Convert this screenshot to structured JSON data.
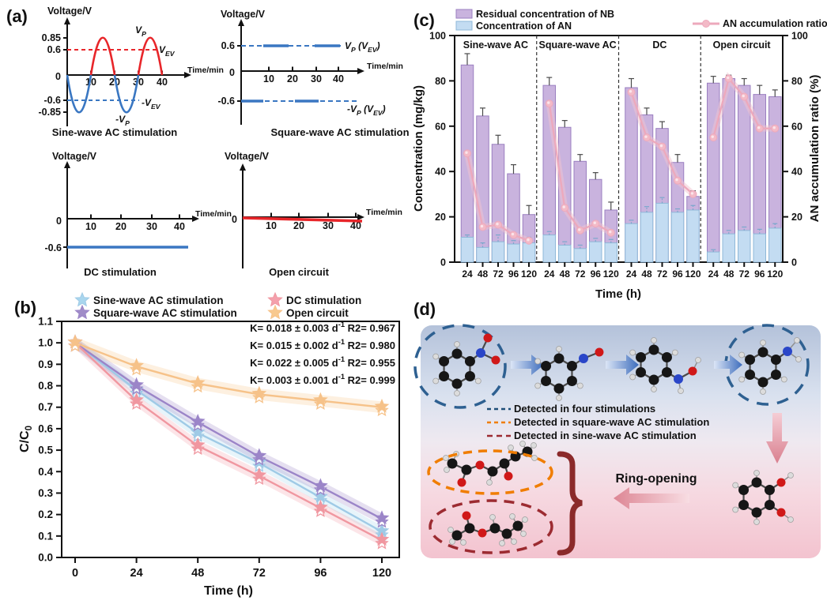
{
  "panels": {
    "a_label": "(a)",
    "b_label": "(b)",
    "c_label": "(c)",
    "d_label": "(d)"
  },
  "panel_a": {
    "voltage_axis_label": "Voltage/V",
    "time_axis_label": "Time/min",
    "time_ticks": [
      "10",
      "20",
      "30",
      "40"
    ],
    "sine": {
      "title": "Sine-wave AC stimulation",
      "yticks": [
        "0.85",
        "0.6",
        "0",
        "-0.6",
        "-0.85"
      ],
      "vp": [
        [
          "V",
          0
        ],
        [
          "P",
          1
        ]
      ],
      "vev": [
        [
          "V",
          0
        ],
        [
          "EV",
          1
        ]
      ],
      "neg_vev": [
        [
          "-V",
          0
        ],
        [
          "EV",
          1
        ]
      ],
      "neg_vp": [
        [
          "-V",
          0
        ],
        [
          "P",
          1
        ]
      ]
    },
    "square": {
      "title": "Square-wave AC stimulation",
      "yticks": [
        "0.6",
        "0",
        "-0.6"
      ],
      "vp_vev": [
        [
          "V",
          0
        ],
        [
          "P",
          1
        ],
        [
          " (V",
          0
        ],
        [
          "EV",
          1
        ],
        [
          ")",
          0
        ]
      ],
      "neg_vp_vev": [
        [
          "-V",
          0
        ],
        [
          "P",
          1
        ],
        [
          " (V",
          0
        ],
        [
          "EV",
          1
        ],
        [
          ")",
          0
        ]
      ]
    },
    "dc": {
      "title": "DC stimulation",
      "yticks": [
        "0",
        "-0.6"
      ]
    },
    "open": {
      "title": "Open circuit",
      "yticks": [
        "0"
      ]
    }
  },
  "panel_b": {
    "ylabel_rich": [
      [
        "C/C",
        0
      ],
      [
        "0",
        1
      ]
    ],
    "xlabel": "Time (h)",
    "yticks": [
      "0.0",
      "0.1",
      "0.2",
      "0.3",
      "0.4",
      "0.5",
      "0.6",
      "0.7",
      "0.8",
      "0.9",
      "1.0",
      "1.1"
    ],
    "xticks": [
      "0",
      "24",
      "48",
      "72",
      "96",
      "120"
    ],
    "k_annotations": [
      {
        "color": "#a9d6ee",
        "segments": [
          [
            "K= 0.018 ± 0.003 d",
            0
          ],
          [
            "-1",
            2
          ],
          [
            "  R2= 0.967",
            0
          ]
        ]
      },
      {
        "color": "#a08cc8",
        "segments": [
          [
            "K= 0.015 ± 0.002 d",
            0
          ],
          [
            "-1",
            2
          ],
          [
            "  R2= 0.980",
            0
          ]
        ]
      },
      {
        "color": "#f4a9b4",
        "segments": [
          [
            "K= 0.022 ± 0.005 d",
            0
          ],
          [
            "-1",
            2
          ],
          [
            "  R2= 0.955",
            0
          ]
        ]
      },
      {
        "color": "#f8cf9e",
        "segments": [
          [
            "K= 0.003 ± 0.001 d",
            0
          ],
          [
            "-1",
            2
          ],
          [
            "  R2= 0.999",
            0
          ]
        ]
      }
    ]
  },
  "panel_c": {
    "legend": [
      "Residual concentration of NB",
      "Concentration of AN",
      "AN accumulation ratio"
    ],
    "ylabel_left": "Concentration (mg/kg)",
    "ylabel_right": "AN accumulation ratio (%)",
    "xlabel": "Time (h)",
    "yticks_left": [
      "0",
      "20",
      "40",
      "60",
      "80",
      "100"
    ],
    "yticks_right": [
      "0",
      "20",
      "40",
      "60",
      "80",
      "100"
    ]
  },
  "panel_d": {
    "legend": [
      {
        "label": "Detected in four stimulations",
        "color": "#1f4e79"
      },
      {
        "label": "Detected in square-wave AC stimulation",
        "color": "#f07d00"
      },
      {
        "label": "Detected in sine-wave AC stimulation",
        "color": "#9c2b31"
      }
    ],
    "ring_opening_label": "Ring-opening"
  },
  "chart_data": [
    {
      "panel": "b",
      "type": "line",
      "xlabel": "Time (h)",
      "ylabel": "C/C0",
      "x": [
        0,
        24,
        48,
        72,
        96,
        120
      ],
      "ylim": [
        0.0,
        1.1
      ],
      "band_halfwidth": 0.027,
      "legend_position": "top",
      "grid": false,
      "series": [
        {
          "name": "Sine-wave AC stimulation",
          "color": "#a9d6ee",
          "line_color": "#9fcae6",
          "values": [
            1.0,
            0.78,
            0.58,
            0.44,
            0.28,
            0.12
          ],
          "k": "0.018 ± 0.003 d-1",
          "r2": "0.967"
        },
        {
          "name": "Square-wave AC stimulation",
          "color": "#a08cc8",
          "line_color": "#9b85c8",
          "values": [
            1.0,
            0.8,
            0.63,
            0.47,
            0.33,
            0.18
          ],
          "k": "0.015 ± 0.002 d-1",
          "r2": "0.980"
        },
        {
          "name": "DC stimulation",
          "color": "#f4a0ac",
          "line_color": "#f097a0",
          "values": [
            1.0,
            0.73,
            0.52,
            0.38,
            0.23,
            0.08
          ],
          "k": "0.022 ± 0.005 d-1",
          "r2": "0.955"
        },
        {
          "name": "Open circuit",
          "color": "#f8c98f",
          "line_color": "#f6c289",
          "values": [
            1.0,
            0.89,
            0.81,
            0.76,
            0.73,
            0.7
          ],
          "k": "0.003 ± 0.001 d-1",
          "r2": "0.999"
        }
      ]
    },
    {
      "panel": "c",
      "type": "bar",
      "group_labels": [
        "Sine-wave AC",
        "Square-wave AC",
        "DC",
        "Open circuit"
      ],
      "categories": [
        "24",
        "48",
        "72",
        "96",
        "120"
      ],
      "xlabel": "Time (h)",
      "ylabel_left": "Concentration (mg/kg)",
      "ylabel_right": "AN accumulation ratio (%)",
      "ylim_left": [
        0,
        100
      ],
      "ylim_right": [
        0,
        100
      ],
      "series": [
        {
          "name": "Residual concentration of NB",
          "unit": "mg/kg",
          "values": [
            [
              87,
              64.5,
              52,
              39,
              21
            ],
            [
              78,
              59.5,
              44.5,
              36.5,
              23
            ],
            [
              77,
              65,
              59,
              44,
              29
            ],
            [
              79,
              81,
              78,
              74,
              73
            ]
          ],
          "errors": [
            [
              5,
              3.5,
              4,
              4,
              4
            ],
            [
              3.5,
              3,
              3,
              3,
              3.5
            ],
            [
              4,
              3,
              3,
              3.5,
              2.5
            ],
            [
              3,
              1.5,
              3,
              4,
              3
            ]
          ]
        },
        {
          "name": "Concentration of AN",
          "unit": "mg/kg",
          "values": [
            [
              11,
              6.5,
              9,
              8,
              8.5
            ],
            [
              12,
              7.5,
              6,
              9,
              8.5
            ],
            [
              17,
              22,
              26,
              22,
              23
            ],
            [
              4.5,
              12.5,
              14,
              12.5,
              15
            ]
          ],
          "errors": [
            [
              1,
              2,
              3,
              1.5,
              2.5
            ],
            [
              1.5,
              1.5,
              1.5,
              1.5,
              1.5
            ],
            [
              1.5,
              2.5,
              2.5,
              1.5,
              2
            ],
            [
              1,
              1.5,
              1.5,
              2,
              2
            ]
          ]
        },
        {
          "name": "AN accumulation ratio",
          "unit": "%",
          "axis": "right",
          "values": [
            [
              48,
              15.5,
              16.5,
              12,
              9.5
            ],
            [
              70,
              24,
              14,
              17,
              13
            ],
            [
              75,
              55,
              51,
              36,
              30
            ],
            [
              55,
              81,
              73,
              59,
              59
            ]
          ]
        }
      ]
    }
  ],
  "colors": {
    "nb_fill": "#c9b3de",
    "nb_edge": "#9a7fc0",
    "an_fill": "#c3dcf2",
    "an_edge": "#8fb8d8",
    "ratio_line": "#eda9bc",
    "ratio_band": "#f2c3cf",
    "ratio_marker": "#f3bac7",
    "sine_red": "#e8262a",
    "sine_blue": "#3a77c2",
    "arrow_blue": "#3c6cbc",
    "arrow_pink": "#d9808f",
    "d_bg_top": "#b4c2da",
    "d_bg_bottom": "#f3c3cf"
  }
}
